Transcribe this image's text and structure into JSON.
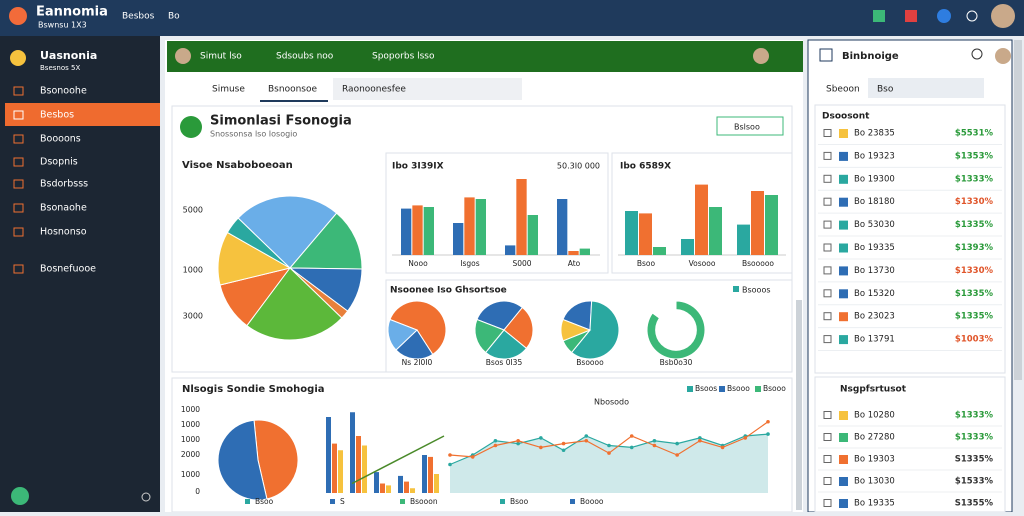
{
  "topbar": {
    "title": "Eannomia",
    "subtitle": "Bswnsu 1X3",
    "nav": [
      "Besbos",
      "Bo"
    ]
  },
  "sidebar": {
    "header": "Uasnonia",
    "header_sub": "Bsesnos 5X",
    "items": [
      "Bsonoohe",
      "Besbos",
      "Boooons",
      "Dsopnis",
      "Bsdorbsss",
      "Bsonaohe",
      "Hosnonso",
      "Bosnefuooe"
    ],
    "active": 1
  },
  "main": {
    "bar": [
      "Simut lso",
      "Sdsoubs noo",
      "Spoporbs lsso"
    ],
    "tabs": [
      "Simuse",
      "Bsnoonsoe",
      "Raonoonesfee"
    ],
    "active_tab": 1,
    "card_title": "Simonlasi Fsonogia",
    "card_subtitle": "Snossonsa lso Iosogio",
    "button": "Bslsoo"
  },
  "pie_main": {
    "type": "pie",
    "title": "Visoe Nsaboboeoan",
    "axis_labels": [
      "5000",
      "1000",
      "3000"
    ],
    "values": [
      11,
      12,
      4,
      24,
      14,
      10,
      2,
      23
    ],
    "colors": [
      "#f07030",
      "#f6c23e",
      "#2aa8a0",
      "#6aaee8",
      "#3cb878",
      "#2e6db4",
      "#e8803a",
      "#5cb83a"
    ]
  },
  "bars_a": {
    "type": "bar",
    "title": "Ibo 3I39IX",
    "note": "50.3I0 000",
    "categories": [
      "Nooo",
      "Isgos",
      "S000",
      "Ato"
    ],
    "ylim": [
      0,
      100
    ],
    "series": [
      {
        "color": "#2e6db4",
        "values": [
          58,
          40,
          12,
          70
        ]
      },
      {
        "color": "#f07030",
        "values": [
          62,
          72,
          95,
          5
        ]
      },
      {
        "color": "#3cb878",
        "values": [
          60,
          70,
          50,
          8
        ]
      }
    ]
  },
  "bars_b": {
    "type": "bar",
    "title": "Ibo 6589X",
    "categories": [
      "Bsoo",
      "Vosooo",
      "Bsooooo"
    ],
    "ylim": [
      0,
      100
    ],
    "series": [
      {
        "color": "#2aa8a0",
        "values": [
          55,
          20,
          38
        ]
      },
      {
        "color": "#f07030",
        "values": [
          52,
          88,
          80
        ]
      },
      {
        "color": "#3cb878",
        "values": [
          10,
          60,
          75
        ]
      }
    ]
  },
  "donuts": {
    "type": "pie",
    "title": "Nsoonee Iso Ghsortsoe",
    "legend": "Bsooos",
    "pies": [
      {
        "label": "Ns 2I0I0",
        "values": [
          60,
          22,
          18
        ],
        "colors": [
          "#f07030",
          "#2e6db4",
          "#6aaee8"
        ]
      },
      {
        "label": "Bsos 0I35",
        "values": [
          30,
          25,
          25,
          20
        ],
        "colors": [
          "#2e6db4",
          "#f07030",
          "#2aa8a0",
          "#3cb878"
        ]
      },
      {
        "label": "Bsoooo",
        "values": [
          20,
          60,
          8,
          12
        ],
        "colors": [
          "#2e6db4",
          "#2aa8a0",
          "#3cb878",
          "#f6c23e"
        ]
      },
      {
        "label": "Bsb0o30",
        "values": [
          85,
          15
        ],
        "colors": [
          "#3cb878",
          "#ffffff"
        ]
      }
    ]
  },
  "bottom": {
    "type": "line",
    "title": "Nlsogis Sondie Smohogia",
    "yticks": [
      "1000",
      "1000",
      "1000",
      "2000",
      "1000",
      "0"
    ],
    "legend": [
      "Bsoos",
      "Bsooo",
      "Bsooo"
    ],
    "legend_colors": [
      "#2aa8a0",
      "#2e6db4",
      "#3cb878"
    ],
    "area_title": "Nbosodo",
    "x_labels": [
      "Bsoo",
      "S",
      "Bsooon",
      "Bsoo",
      "Boooo"
    ],
    "ylim": [
      0,
      100
    ],
    "pie": {
      "values": [
        48,
        52
      ],
      "colors": [
        "#f07030",
        "#2e6db4"
      ]
    },
    "bars": [
      {
        "color": "#2e6db4",
        "values": [
          80,
          85,
          22,
          18,
          40
        ]
      },
      {
        "color": "#f07030",
        "values": [
          52,
          60,
          10,
          12,
          38
        ]
      },
      {
        "color": "#f6c23e",
        "values": [
          45,
          50,
          8,
          5,
          20
        ]
      }
    ],
    "trend": {
      "color": "#4a8a2a",
      "values": [
        10,
        60
      ]
    },
    "lines": [
      {
        "color": "#2aa8a0",
        "values": [
          30,
          40,
          55,
          52,
          58,
          45,
          60,
          50,
          48,
          55,
          52,
          58,
          50,
          60,
          62
        ]
      },
      {
        "color": "#f07030",
        "values": [
          40,
          38,
          50,
          55,
          48,
          52,
          55,
          42,
          60,
          50,
          40,
          55,
          48,
          58,
          75
        ]
      }
    ]
  },
  "right": {
    "header": "Binbnoige",
    "tabs": [
      "Sbeoon",
      "Bso"
    ],
    "section1": "Dsoosont",
    "section2": "Nsgpfsrtusot",
    "items1": [
      {
        "name": "Bo 23835",
        "value": "$5531%",
        "status": "up",
        "icon": "#f6c23e"
      },
      {
        "name": "Bo 19323",
        "value": "$1353%",
        "status": "up",
        "icon": "#2e6db4"
      },
      {
        "name": "Bo 19300",
        "value": "$1333%",
        "status": "up",
        "icon": "#2aa8a0"
      },
      {
        "name": "Bo 18180",
        "value": "$1330%",
        "status": "down",
        "icon": "#2e6db4"
      },
      {
        "name": "Bo 53030",
        "value": "$1335%",
        "status": "up",
        "icon": "#2aa8a0"
      },
      {
        "name": "Bo 19335",
        "value": "$1393%",
        "status": "up",
        "icon": "#2aa8a0"
      },
      {
        "name": "Bo 13730",
        "value": "$1330%",
        "status": "down",
        "icon": "#2e6db4"
      },
      {
        "name": "Bo 15320",
        "value": "$1335%",
        "status": "up",
        "icon": "#2e6db4"
      },
      {
        "name": "Bo 23023",
        "value": "$1335%",
        "status": "up",
        "icon": "#f07030"
      },
      {
        "name": "Bo 13791",
        "value": "$1003%",
        "status": "down",
        "icon": "#2aa8a0"
      }
    ],
    "items2": [
      {
        "name": "Bo 10280",
        "value": "$1333%",
        "status": "up",
        "icon": "#f6c23e"
      },
      {
        "name": "Bo 27280",
        "value": "$1333%",
        "status": "up",
        "icon": "#3cb878"
      },
      {
        "name": "Bo 19303",
        "value": "S1335%",
        "status": "flat",
        "icon": "#f07030"
      },
      {
        "name": "Bo 13030",
        "value": "$1533%",
        "status": "flat",
        "icon": "#2e6db4"
      },
      {
        "name": "Bo 19335",
        "value": "S1355%",
        "status": "flat",
        "icon": "#2e6db4"
      }
    ]
  }
}
